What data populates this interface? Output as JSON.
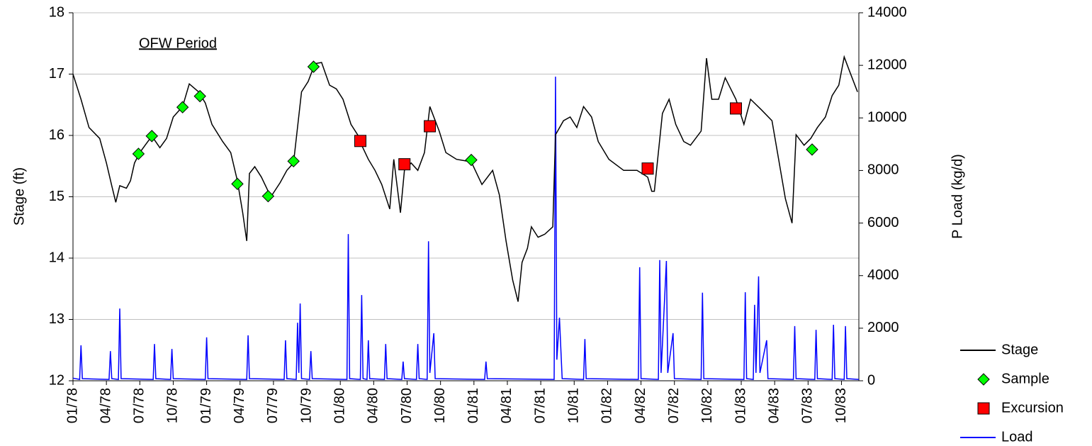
{
  "chart_data": {
    "type": "line",
    "annotation": "OFW Period",
    "y_label": "Stage (ft)",
    "y2_label": "P Load  (kg/d)",
    "xlim": [
      1978,
      1983.88
    ],
    "xticks": [
      {
        "value": 1978,
        "label": "01/78"
      },
      {
        "value": 1978.25,
        "label": "04/78"
      },
      {
        "value": 1978.5,
        "label": "07/78"
      },
      {
        "value": 1978.75,
        "label": "10/78"
      },
      {
        "value": 1979,
        "label": "01/79"
      },
      {
        "value": 1979.25,
        "label": "04/79"
      },
      {
        "value": 1979.5,
        "label": "07/79"
      },
      {
        "value": 1979.75,
        "label": "10/79"
      },
      {
        "value": 1980,
        "label": "01/80"
      },
      {
        "value": 1980.25,
        "label": "04/80"
      },
      {
        "value": 1980.5,
        "label": "07/80"
      },
      {
        "value": 1980.75,
        "label": "10/80"
      },
      {
        "value": 1981,
        "label": "01/81"
      },
      {
        "value": 1981.25,
        "label": "04/81"
      },
      {
        "value": 1981.5,
        "label": "07/81"
      },
      {
        "value": 1981.75,
        "label": "10/81"
      },
      {
        "value": 1982,
        "label": "01/82"
      },
      {
        "value": 1982.25,
        "label": "04/82"
      },
      {
        "value": 1982.5,
        "label": "07/82"
      },
      {
        "value": 1982.75,
        "label": "10/82"
      },
      {
        "value": 1983,
        "label": "01/83"
      },
      {
        "value": 1983.25,
        "label": "04/83"
      },
      {
        "value": 1983.5,
        "label": "07/83"
      },
      {
        "value": 1983.75,
        "label": "10/83"
      }
    ],
    "ylim": [
      12,
      18
    ],
    "yticks": [
      12,
      13,
      14,
      15,
      16,
      17,
      18
    ],
    "y2lim": [
      0,
      14000
    ],
    "y2ticks": [
      0,
      2000,
      4000,
      6000,
      8000,
      10000,
      12000,
      14000
    ],
    "grid": true,
    "legend": "outside-right-bottom",
    "series": [
      {
        "name": "Stage",
        "color": "#000000",
        "marker": "line",
        "x": [
          1978.0,
          1978.06,
          1978.12,
          1978.2,
          1978.25,
          1978.29,
          1978.32,
          1978.35,
          1978.4,
          1978.43,
          1978.46,
          1978.5,
          1978.54,
          1978.59,
          1978.65,
          1978.7,
          1978.75,
          1978.82,
          1978.87,
          1978.94,
          1978.99,
          1979.04,
          1979.12,
          1979.18,
          1979.23,
          1979.27,
          1979.3,
          1979.32,
          1979.36,
          1979.41,
          1979.46,
          1979.49,
          1979.55,
          1979.6,
          1979.65,
          1979.71,
          1979.76,
          1979.81,
          1979.86,
          1979.92,
          1979.97,
          1980.02,
          1980.08,
          1980.13,
          1980.16,
          1980.21,
          1980.26,
          1980.31,
          1980.37,
          1980.4,
          1980.45,
          1980.48,
          1980.53,
          1980.58,
          1980.63,
          1980.67,
          1980.74,
          1980.79,
          1980.87,
          1980.98,
          1981.06,
          1981.14,
          1981.19,
          1981.24,
          1981.29,
          1981.33,
          1981.36,
          1981.4,
          1981.43,
          1981.48,
          1981.53,
          1981.59,
          1981.61,
          1981.67,
          1981.72,
          1981.77,
          1981.82,
          1981.88,
          1981.93,
          1982.01,
          1982.12,
          1982.22,
          1982.3,
          1982.33,
          1982.35,
          1982.41,
          1982.46,
          1982.51,
          1982.57,
          1982.62,
          1982.7,
          1982.74,
          1982.78,
          1982.83,
          1982.88,
          1982.96,
          1983.02,
          1983.07,
          1983.15,
          1983.23,
          1983.28,
          1983.33,
          1983.38,
          1983.41,
          1983.47,
          1983.52,
          1983.57,
          1983.63,
          1983.68,
          1983.73,
          1983.77,
          1983.81,
          1983.87
        ],
        "values": [
          17.0,
          16.59,
          16.13,
          15.95,
          15.55,
          15.18,
          14.91,
          15.18,
          15.14,
          15.26,
          15.55,
          15.72,
          15.84,
          15.99,
          15.8,
          15.95,
          16.3,
          16.47,
          16.84,
          16.71,
          16.53,
          16.18,
          15.9,
          15.72,
          15.26,
          14.74,
          14.28,
          15.38,
          15.49,
          15.32,
          15.09,
          15.03,
          15.23,
          15.43,
          15.55,
          16.71,
          16.88,
          17.17,
          17.19,
          16.82,
          16.76,
          16.59,
          16.18,
          16.01,
          15.84,
          15.61,
          15.43,
          15.2,
          14.8,
          15.61,
          14.74,
          15.43,
          15.55,
          15.43,
          15.72,
          16.47,
          16.07,
          15.72,
          15.61,
          15.57,
          15.2,
          15.43,
          15.03,
          14.28,
          13.64,
          13.29,
          13.93,
          14.16,
          14.51,
          14.34,
          14.39,
          14.51,
          16.01,
          16.24,
          16.3,
          16.13,
          16.47,
          16.3,
          15.9,
          15.61,
          15.43,
          15.43,
          15.32,
          15.09,
          15.09,
          16.36,
          16.59,
          16.18,
          15.9,
          15.84,
          16.07,
          17.26,
          16.59,
          16.59,
          16.94,
          16.59,
          16.18,
          16.59,
          16.42,
          16.24,
          15.61,
          14.97,
          14.57,
          16.01,
          15.84,
          15.95,
          16.13,
          16.3,
          16.65,
          16.82,
          17.28,
          17.05,
          16.71
        ]
      },
      {
        "name": "Sample",
        "color": "#00ff00",
        "marker": "diamond",
        "x": [
          1978.49,
          1978.59,
          1978.82,
          1978.95,
          1979.23,
          1979.46,
          1979.65,
          1979.8,
          1980.98,
          1983.53
        ],
        "values": [
          15.7,
          15.99,
          16.46,
          16.64,
          15.21,
          15.01,
          15.58,
          17.12,
          15.6,
          15.77
        ]
      },
      {
        "name": "Excursion",
        "color": "#ff0000",
        "marker": "square",
        "x": [
          1980.15,
          1980.48,
          1980.67,
          1982.3,
          1982.96
        ],
        "values": [
          15.91,
          15.53,
          16.15,
          15.46,
          16.44
        ]
      },
      {
        "name": "Load",
        "color": "#0000ff",
        "marker": "line",
        "axis": "y2",
        "x": [
          1978.0,
          1978.05,
          1978.06,
          1978.07,
          1978.27,
          1978.28,
          1978.29,
          1978.34,
          1978.35,
          1978.36,
          1978.6,
          1978.61,
          1978.62,
          1978.73,
          1978.74,
          1978.75,
          1978.99,
          1979.0,
          1979.01,
          1979.3,
          1979.31,
          1979.32,
          1979.58,
          1979.59,
          1979.6,
          1979.67,
          1979.68,
          1979.69,
          1979.7,
          1979.71,
          1979.77,
          1979.78,
          1979.79,
          1980.05,
          1980.06,
          1980.07,
          1980.15,
          1980.16,
          1980.17,
          1980.2,
          1980.21,
          1980.22,
          1980.33,
          1980.34,
          1980.35,
          1980.46,
          1980.47,
          1980.48,
          1980.57,
          1980.58,
          1980.59,
          1980.65,
          1980.66,
          1980.67,
          1980.7,
          1980.71,
          1981.08,
          1981.09,
          1981.1,
          1981.6,
          1981.61,
          1981.62,
          1981.64,
          1981.66,
          1981.82,
          1981.83,
          1981.84,
          1982.23,
          1982.24,
          1982.25,
          1982.38,
          1982.39,
          1982.4,
          1982.44,
          1982.45,
          1982.49,
          1982.5,
          1982.7,
          1982.71,
          1982.72,
          1983.02,
          1983.03,
          1983.04,
          1983.09,
          1983.1,
          1983.11,
          1983.13,
          1983.14,
          1983.19,
          1983.2,
          1983.39,
          1983.4,
          1983.41,
          1983.55,
          1983.56,
          1983.57,
          1983.68,
          1983.69,
          1983.7,
          1983.77,
          1983.78,
          1983.79,
          1983.88
        ],
        "values": [
          100,
          50,
          1350,
          80,
          50,
          1130,
          80,
          50,
          2750,
          80,
          50,
          1400,
          80,
          50,
          1210,
          80,
          50,
          1650,
          80,
          50,
          1730,
          80,
          50,
          1540,
          80,
          50,
          2210,
          300,
          2940,
          80,
          50,
          1130,
          80,
          50,
          5580,
          80,
          50,
          3260,
          80,
          50,
          1540,
          80,
          50,
          1400,
          80,
          50,
          730,
          80,
          50,
          1400,
          80,
          50,
          5310,
          300,
          1810,
          80,
          50,
          730,
          80,
          50,
          11570,
          800,
          2400,
          80,
          50,
          1590,
          80,
          50,
          4320,
          80,
          50,
          4590,
          300,
          4560,
          300,
          1810,
          80,
          50,
          3350,
          80,
          50,
          3370,
          80,
          50,
          2890,
          300,
          3970,
          300,
          1540,
          80,
          50,
          2080,
          80,
          50,
          1940,
          80,
          50,
          2130,
          80,
          50,
          2080,
          80,
          50
        ]
      }
    ]
  }
}
